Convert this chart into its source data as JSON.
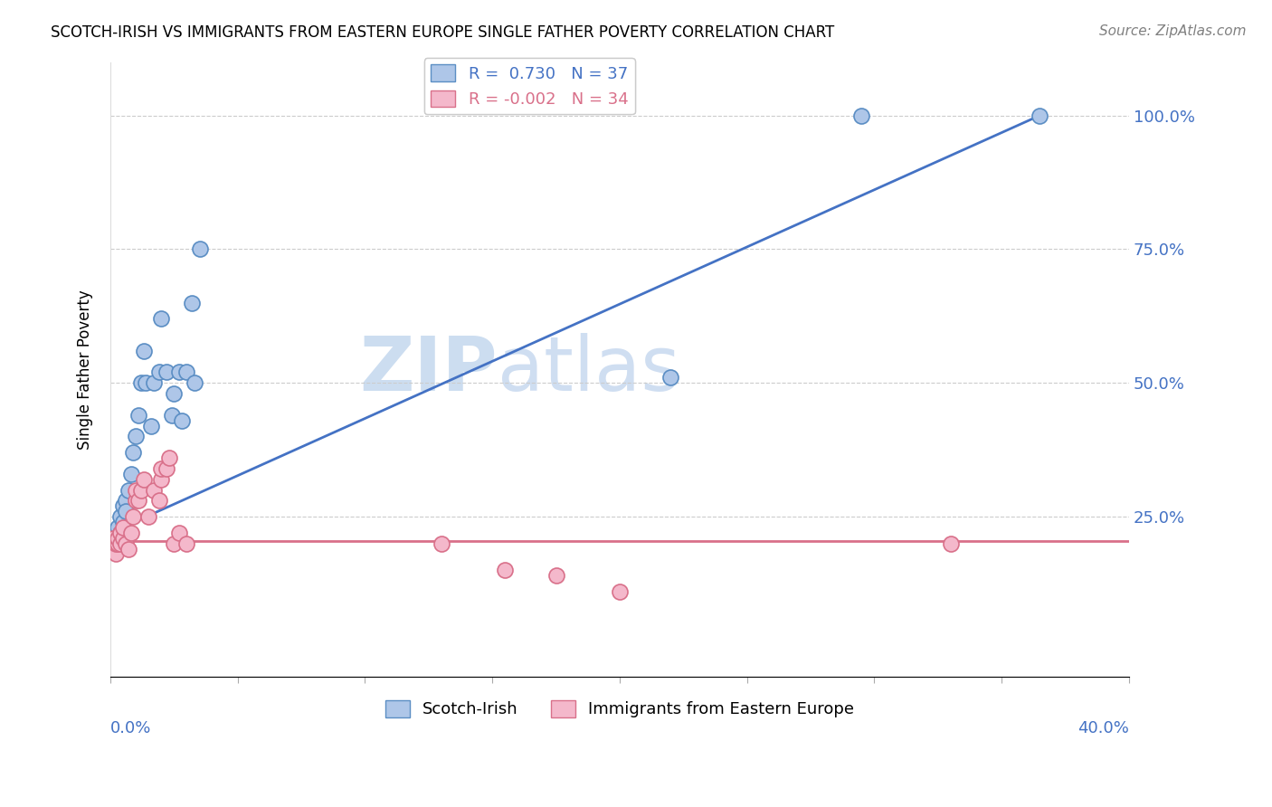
{
  "title": "SCOTCH-IRISH VS IMMIGRANTS FROM EASTERN EUROPE SINGLE FATHER POVERTY CORRELATION CHART",
  "source": "Source: ZipAtlas.com",
  "ylabel": "Single Father Poverty",
  "blue_R": 0.73,
  "blue_N": 37,
  "pink_R": -0.002,
  "pink_N": 34,
  "blue_color": "#aec6e8",
  "blue_edge_color": "#5b8ec4",
  "blue_line_color": "#4472c4",
  "pink_color": "#f4b8cb",
  "pink_edge_color": "#d9708a",
  "pink_line_color": "#d9708a",
  "watermark_color": "#ccddf0",
  "legend_label_blue": "R =  0.730   N = 37",
  "legend_label_pink": "R = -0.002   N = 34",
  "xlim": [
    0.0,
    0.4
  ],
  "ylim": [
    -0.05,
    1.1
  ],
  "y_ticks": [
    0.25,
    0.5,
    0.75,
    1.0
  ],
  "y_tick_labels": [
    "25.0%",
    "50.0%",
    "75.0%",
    "100.0%"
  ],
  "blue_scatter_x": [
    0.001,
    0.001,
    0.002,
    0.002,
    0.003,
    0.003,
    0.003,
    0.004,
    0.004,
    0.005,
    0.005,
    0.006,
    0.006,
    0.007,
    0.008,
    0.009,
    0.01,
    0.011,
    0.012,
    0.013,
    0.014,
    0.016,
    0.017,
    0.019,
    0.02,
    0.022,
    0.024,
    0.025,
    0.027,
    0.028,
    0.03,
    0.032,
    0.033,
    0.035,
    0.22,
    0.295,
    0.365
  ],
  "blue_scatter_y": [
    0.2,
    0.21,
    0.2,
    0.22,
    0.2,
    0.21,
    0.23,
    0.22,
    0.25,
    0.24,
    0.27,
    0.28,
    0.26,
    0.3,
    0.33,
    0.37,
    0.4,
    0.44,
    0.5,
    0.56,
    0.5,
    0.42,
    0.5,
    0.52,
    0.62,
    0.52,
    0.44,
    0.48,
    0.52,
    0.43,
    0.52,
    0.65,
    0.5,
    0.75,
    0.51,
    1.0,
    1.0
  ],
  "pink_scatter_x": [
    0.001,
    0.001,
    0.002,
    0.002,
    0.003,
    0.003,
    0.004,
    0.004,
    0.005,
    0.005,
    0.006,
    0.007,
    0.008,
    0.009,
    0.01,
    0.01,
    0.011,
    0.012,
    0.013,
    0.015,
    0.017,
    0.019,
    0.02,
    0.02,
    0.022,
    0.023,
    0.025,
    0.027,
    0.03,
    0.13,
    0.155,
    0.175,
    0.2,
    0.33
  ],
  "pink_scatter_y": [
    0.2,
    0.21,
    0.18,
    0.2,
    0.2,
    0.21,
    0.2,
    0.22,
    0.21,
    0.23,
    0.2,
    0.19,
    0.22,
    0.25,
    0.28,
    0.3,
    0.28,
    0.3,
    0.32,
    0.25,
    0.3,
    0.28,
    0.32,
    0.34,
    0.34,
    0.36,
    0.2,
    0.22,
    0.2,
    0.2,
    0.15,
    0.14,
    0.11,
    0.2
  ],
  "blue_line_x0": 0.0,
  "blue_line_y0": 0.22,
  "blue_line_x1": 0.365,
  "blue_line_y1": 1.0,
  "pink_line_x0": 0.0,
  "pink_line_y0": 0.205,
  "pink_line_x1": 0.4,
  "pink_line_y1": 0.205
}
